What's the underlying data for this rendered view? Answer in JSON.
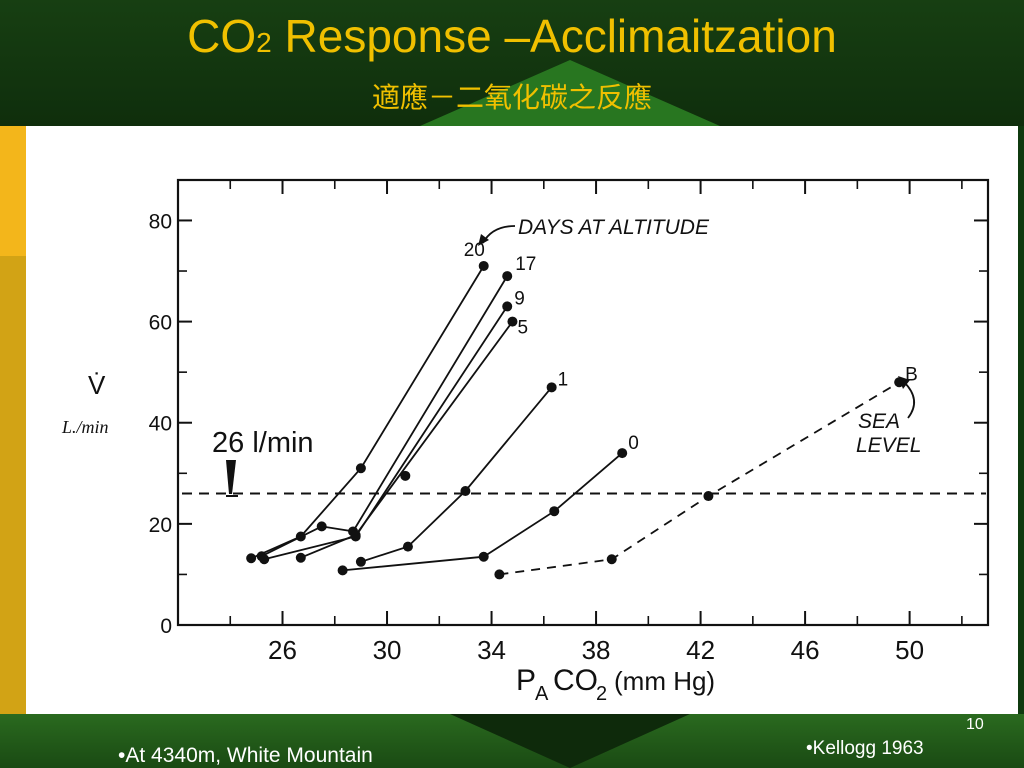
{
  "slide": {
    "title_main": "CO",
    "title_sub": "2",
    "title_rest": " Response –Acclimaitzation",
    "subtitle": "適應－二氧化碳之反應",
    "page_number": "10",
    "footer_left": "•At 4340m, White Mountain",
    "footer_right": "•Kellogg  1963",
    "colors": {
      "title": "#f0c000",
      "gold": "#d2a315",
      "green": "#0f3a0f"
    }
  },
  "chart_data": {
    "type": "line",
    "xlabel": "PACO2 (mm Hg)",
    "xlabel_parts": {
      "p": "P",
      "sub_a": "A",
      "co": "CO",
      "sub_2": "2",
      "unit": " (mm Hg)"
    },
    "ylabel_symbol": "V̇",
    "ylabel": "L./min",
    "xlim": [
      22,
      53
    ],
    "ylim": [
      0,
      88
    ],
    "xticks": [
      "26",
      "30",
      "34",
      "38",
      "42",
      "46",
      "50"
    ],
    "yticks": [
      "0",
      "20",
      "40",
      "60",
      "80"
    ],
    "annotation_days": "DAYS  AT  ALTITUDE",
    "annotation_sea": [
      "SEA",
      "LEVEL"
    ],
    "reference_line": {
      "y": 26,
      "label": "26 l/min"
    },
    "series": [
      {
        "name": "20",
        "points": [
          [
            24.8,
            13.2
          ],
          [
            26.7,
            17.5
          ],
          [
            29.0,
            31.0
          ],
          [
            33.7,
            71.0
          ]
        ]
      },
      {
        "name": "17",
        "points": [
          [
            25.2,
            13.6
          ],
          [
            27.5,
            19.5
          ],
          [
            28.7,
            18.5
          ],
          [
            34.6,
            69.0
          ]
        ]
      },
      {
        "name": "9",
        "points": [
          [
            25.3,
            13.0
          ],
          [
            28.8,
            17.5
          ],
          [
            34.6,
            63.0
          ]
        ]
      },
      {
        "name": "5",
        "points": [
          [
            26.7,
            13.3
          ],
          [
            28.8,
            17.8
          ],
          [
            34.8,
            60.0
          ]
        ]
      },
      {
        "name": "1",
        "points": [
          [
            29.0,
            12.5
          ],
          [
            30.8,
            15.5
          ],
          [
            33.0,
            26.5
          ],
          [
            36.3,
            47.0
          ]
        ]
      },
      {
        "name": "0",
        "points": [
          [
            28.3,
            10.8
          ],
          [
            33.7,
            13.5
          ],
          [
            36.4,
            22.5
          ],
          [
            39.0,
            34.0
          ]
        ]
      },
      {
        "name": "B",
        "dashed": true,
        "points": [
          [
            34.3,
            10.0
          ],
          [
            38.6,
            13.0
          ],
          [
            42.3,
            25.5
          ],
          [
            49.6,
            48.0
          ]
        ]
      }
    ],
    "extra_points": [
      [
        30.7,
        29.5
      ]
    ],
    "grid": false
  }
}
